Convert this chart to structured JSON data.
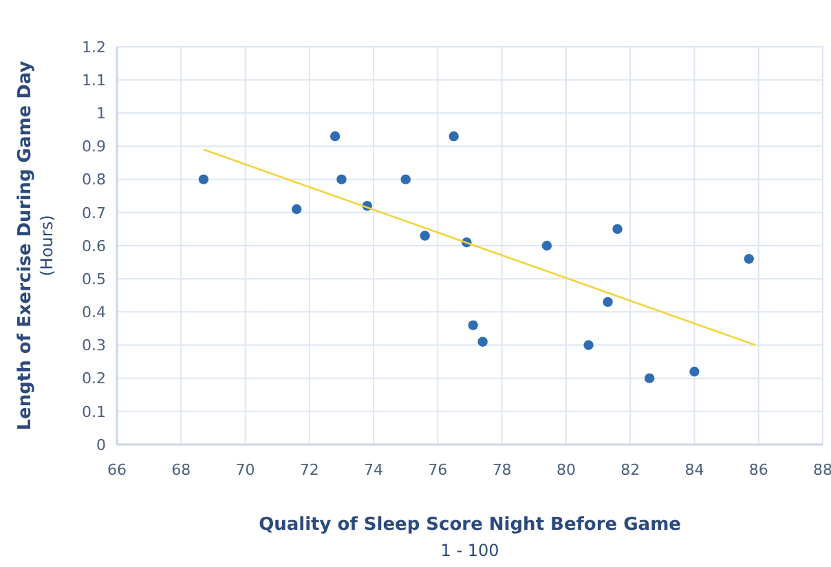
{
  "chart_data": {
    "type": "scatter",
    "xlabel": "Quality of Sleep Score Night Before Game\n1 - 100",
    "ylabel": "Length of Exercise During Game Day\n(Hours)",
    "xlim": [
      66,
      88
    ],
    "xticks": [
      66,
      68,
      70,
      72,
      74,
      76,
      78,
      80,
      82,
      84,
      86,
      88
    ],
    "ylim": [
      0,
      1.2
    ],
    "yticks": [
      0,
      0.1,
      0.2,
      0.3,
      0.4,
      0.5,
      0.6,
      0.7,
      0.8,
      0.9,
      1,
      1.1,
      1.2
    ],
    "grid": true,
    "marker": "circle",
    "series": [
      {
        "color": "#2e6db4",
        "x": [
          68.7,
          71.6,
          72.8,
          73.0,
          73.8,
          75.0,
          75.6,
          76.5,
          76.9,
          77.1,
          77.4,
          79.4,
          80.7,
          81.3,
          81.6,
          82.6,
          84.0,
          85.7
        ],
        "values": [
          0.8,
          0.71,
          0.93,
          0.8,
          0.72,
          0.8,
          0.63,
          0.93,
          0.61,
          0.36,
          0.31,
          0.6,
          0.3,
          0.43,
          0.65,
          0.2,
          0.22,
          0.56
        ]
      },
      {
        "type": "line",
        "color": "#f5d33a",
        "marker": "none",
        "x": [
          68.7,
          85.9
        ],
        "values": [
          0.89,
          0.3
        ]
      }
    ]
  }
}
